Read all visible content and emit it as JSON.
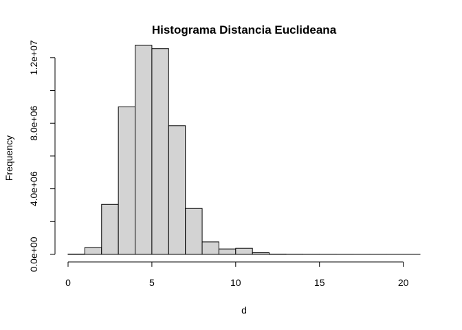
{
  "chart_data": {
    "type": "bar",
    "title": "Histograma Distancia Euclideana",
    "xlabel": "d",
    "ylabel": "Frequency",
    "xlim": [
      0,
      21
    ],
    "ylim": [
      0,
      13000000
    ],
    "x_ticks": [
      0,
      5,
      10,
      15,
      20
    ],
    "x_tick_labels": [
      "0",
      "5",
      "10",
      "15",
      "20"
    ],
    "y_ticks": [
      0,
      2000000,
      4000000,
      6000000,
      8000000,
      10000000,
      12000000
    ],
    "y_tick_labels": [
      "0.0e+00",
      "",
      "4.0e+06",
      "",
      "8.0e+06",
      "",
      "1.2e+07"
    ],
    "bin_width": 1,
    "bins": [
      {
        "start": 0,
        "end": 1,
        "count": 20000
      },
      {
        "start": 1,
        "end": 2,
        "count": 420000
      },
      {
        "start": 2,
        "end": 3,
        "count": 3050000
      },
      {
        "start": 3,
        "end": 4,
        "count": 9000000
      },
      {
        "start": 4,
        "end": 5,
        "count": 12750000
      },
      {
        "start": 5,
        "end": 6,
        "count": 12550000
      },
      {
        "start": 6,
        "end": 7,
        "count": 7850000
      },
      {
        "start": 7,
        "end": 8,
        "count": 2800000
      },
      {
        "start": 8,
        "end": 9,
        "count": 760000
      },
      {
        "start": 9,
        "end": 10,
        "count": 330000
      },
      {
        "start": 10,
        "end": 11,
        "count": 370000
      },
      {
        "start": 11,
        "end": 12,
        "count": 100000
      },
      {
        "start": 12,
        "end": 13,
        "count": 15000
      },
      {
        "start": 13,
        "end": 14,
        "count": 8000
      },
      {
        "start": 14,
        "end": 15,
        "count": 5000
      },
      {
        "start": 15,
        "end": 16,
        "count": 3000
      },
      {
        "start": 16,
        "end": 17,
        "count": 2000
      },
      {
        "start": 17,
        "end": 18,
        "count": 1000
      },
      {
        "start": 18,
        "end": 19,
        "count": 1000
      },
      {
        "start": 19,
        "end": 20,
        "count": 500
      },
      {
        "start": 20,
        "end": 21,
        "count": 500
      }
    ]
  }
}
